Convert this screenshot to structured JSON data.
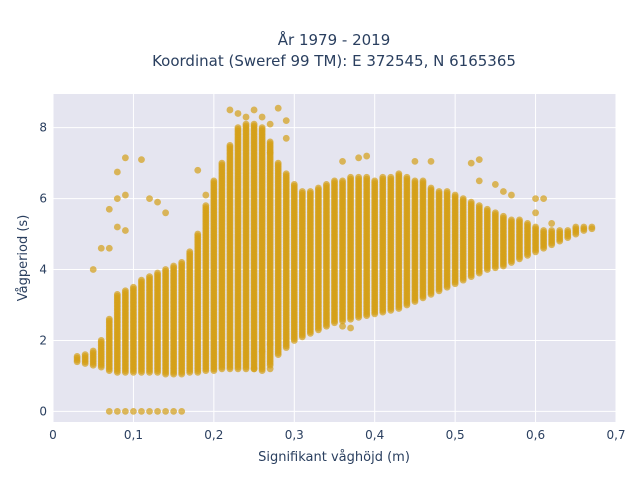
{
  "chart_data": {
    "type": "scatter",
    "title_lines": [
      "År 1979 - 2019",
      "Koordinat (Sweref 99 TM): E 372545, N 6165365"
    ],
    "xlabel": "Signifikant våghöjd (m)",
    "ylabel": "Vågperiod (s)",
    "xlim": [
      0,
      0.7
    ],
    "ylim": [
      -0.3,
      8.95
    ],
    "x_ticks": [
      0,
      0.1,
      0.2,
      0.3,
      0.4,
      0.5,
      0.6,
      0.7
    ],
    "x_tick_labels": [
      "0",
      "0,1",
      "0,2",
      "0,3",
      "0,4",
      "0,5",
      "0,6",
      "0,7"
    ],
    "y_ticks": [
      0,
      2,
      4,
      6,
      8
    ],
    "y_tick_labels": [
      "0",
      "2",
      "4",
      "6",
      "8"
    ],
    "grid": true,
    "background_color": "#e5e5f0",
    "marker_color": "#d4a017",
    "marker_opacity": 0.7,
    "x_step": 0.01,
    "band": {
      "x": [
        0.03,
        0.04,
        0.05,
        0.06,
        0.07,
        0.08,
        0.09,
        0.1,
        0.11,
        0.12,
        0.13,
        0.14,
        0.15,
        0.16,
        0.17,
        0.18,
        0.19,
        0.2,
        0.21,
        0.22,
        0.23,
        0.24,
        0.25,
        0.26,
        0.27,
        0.28,
        0.29,
        0.3,
        0.31,
        0.32,
        0.33,
        0.34,
        0.35,
        0.36,
        0.37,
        0.38,
        0.39,
        0.4,
        0.41,
        0.42,
        0.43,
        0.44,
        0.45,
        0.46,
        0.47,
        0.48,
        0.49,
        0.5,
        0.51,
        0.52,
        0.53,
        0.54,
        0.55,
        0.56,
        0.57,
        0.58,
        0.59,
        0.6,
        0.61,
        0.62,
        0.63,
        0.64,
        0.65,
        0.66,
        0.67
      ],
      "y_low": [
        1.4,
        1.35,
        1.3,
        1.25,
        1.15,
        1.1,
        1.1,
        1.1,
        1.1,
        1.1,
        1.1,
        1.05,
        1.05,
        1.05,
        1.1,
        1.1,
        1.15,
        1.15,
        1.2,
        1.2,
        1.2,
        1.2,
        1.2,
        1.2,
        1.3,
        1.6,
        1.8,
        2.0,
        2.1,
        2.2,
        2.3,
        2.4,
        2.5,
        2.55,
        2.6,
        2.65,
        2.7,
        2.75,
        2.8,
        2.85,
        2.9,
        3.0,
        3.1,
        3.2,
        3.3,
        3.4,
        3.5,
        3.6,
        3.7,
        3.8,
        3.9,
        4.0,
        4.05,
        4.1,
        4.2,
        4.3,
        4.4,
        4.5,
        4.6,
        4.7,
        4.8,
        4.9,
        5.0,
        5.1,
        5.15
      ],
      "y_high": [
        1.55,
        1.6,
        1.7,
        2.0,
        2.6,
        3.3,
        3.4,
        3.5,
        3.7,
        3.8,
        3.9,
        4.0,
        4.1,
        4.2,
        4.5,
        5.0,
        5.8,
        6.5,
        7.0,
        7.5,
        8.0,
        8.1,
        8.1,
        8.0,
        7.6,
        7.0,
        6.7,
        6.4,
        6.2,
        6.2,
        6.3,
        6.4,
        6.5,
        6.5,
        6.6,
        6.6,
        6.6,
        6.5,
        6.6,
        6.6,
        6.7,
        6.6,
        6.5,
        6.5,
        6.3,
        6.2,
        6.2,
        6.1,
        6.0,
        5.9,
        5.8,
        5.7,
        5.6,
        5.5,
        5.4,
        5.4,
        5.3,
        5.2,
        5.1,
        5.1,
        5.1,
        5.1,
        5.2,
        5.2,
        5.2
      ]
    },
    "outliers": [
      [
        0.07,
        0.0
      ],
      [
        0.08,
        0.0
      ],
      [
        0.09,
        0.0
      ],
      [
        0.1,
        0.0
      ],
      [
        0.11,
        0.0
      ],
      [
        0.12,
        0.0
      ],
      [
        0.13,
        0.0
      ],
      [
        0.14,
        0.0
      ],
      [
        0.15,
        0.0
      ],
      [
        0.16,
        0.0
      ],
      [
        0.05,
        4.0
      ],
      [
        0.06,
        4.6
      ],
      [
        0.07,
        4.6
      ],
      [
        0.08,
        5.2
      ],
      [
        0.09,
        5.1
      ],
      [
        0.07,
        5.7
      ],
      [
        0.08,
        6.0
      ],
      [
        0.09,
        6.1
      ],
      [
        0.09,
        7.15
      ],
      [
        0.08,
        6.75
      ],
      [
        0.11,
        7.1
      ],
      [
        0.12,
        6.0
      ],
      [
        0.13,
        5.9
      ],
      [
        0.14,
        5.6
      ],
      [
        0.18,
        6.8
      ],
      [
        0.19,
        6.1
      ],
      [
        0.22,
        8.5
      ],
      [
        0.23,
        8.4
      ],
      [
        0.24,
        8.3
      ],
      [
        0.25,
        8.5
      ],
      [
        0.26,
        8.3
      ],
      [
        0.27,
        8.1
      ],
      [
        0.28,
        8.55
      ],
      [
        0.29,
        8.2
      ],
      [
        0.29,
        7.7
      ],
      [
        0.27,
        7.3
      ],
      [
        0.36,
        7.05
      ],
      [
        0.38,
        7.15
      ],
      [
        0.39,
        7.2
      ],
      [
        0.45,
        7.05
      ],
      [
        0.47,
        7.05
      ],
      [
        0.52,
        7.0
      ],
      [
        0.53,
        7.1
      ],
      [
        0.53,
        6.5
      ],
      [
        0.55,
        6.4
      ],
      [
        0.56,
        6.2
      ],
      [
        0.57,
        6.1
      ],
      [
        0.6,
        6.0
      ],
      [
        0.61,
        6.0
      ],
      [
        0.6,
        5.6
      ],
      [
        0.62,
        5.3
      ],
      [
        0.25,
        1.2
      ],
      [
        0.26,
        1.15
      ],
      [
        0.27,
        1.2
      ],
      [
        0.26,
        1.7
      ],
      [
        0.27,
        1.9
      ],
      [
        0.36,
        2.4
      ],
      [
        0.37,
        2.35
      ]
    ]
  }
}
